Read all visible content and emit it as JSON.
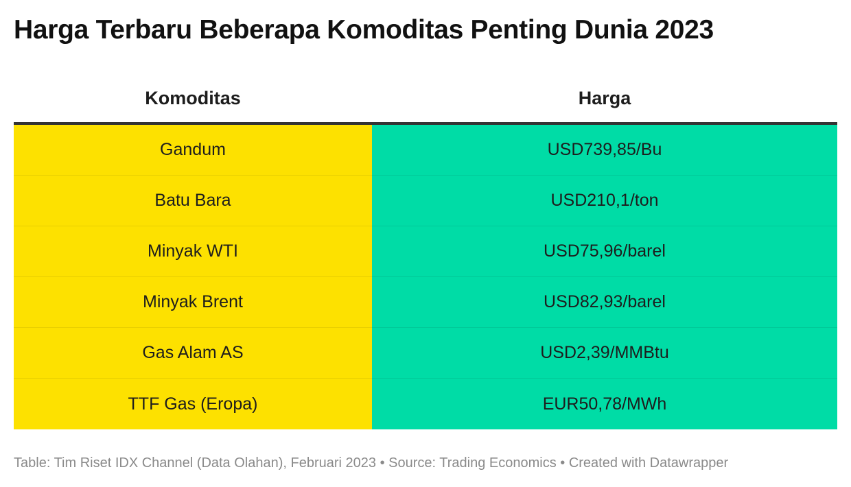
{
  "title": "Harga Terbaru Beberapa Komoditas Penting Dunia 2023",
  "footer": "Table: Tim Riset IDX Channel (Data Olahan), Februari 2023 • Source: Trading Economics • Created with Datawrapper",
  "colors": {
    "commodity_column": "#fde100",
    "price_column": "#00dca6",
    "header_rule": "#333333"
  },
  "chart_data": {
    "type": "table",
    "title": "Harga Terbaru Beberapa Komoditas Penting Dunia 2023",
    "columns": [
      "Komoditas",
      "Harga"
    ],
    "rows": [
      [
        "Gandum",
        "USD739,85/Bu"
      ],
      [
        "Batu Bara",
        "USD210,1/ton"
      ],
      [
        "Minyak WTI",
        "USD75,96/barel"
      ],
      [
        "Minyak Brent",
        "USD82,93/barel"
      ],
      [
        "Gas Alam AS",
        "USD2,39/MMBtu"
      ],
      [
        "TTF Gas (Eropa)",
        "EUR50,78/MWh"
      ]
    ]
  }
}
